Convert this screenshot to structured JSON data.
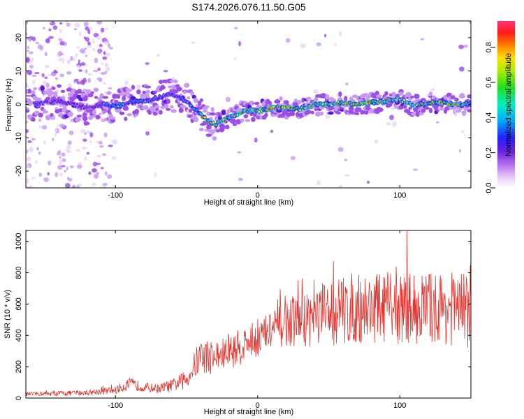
{
  "figure": {
    "title": "S174.2026.076.11.50.G05"
  },
  "chart_data": [
    {
      "type": "heatmap",
      "xlabel": "Height of straight line (km)",
      "ylabel": "Frequency (Hz)",
      "xlim": [
        -163,
        150
      ],
      "ylim": [
        -25,
        25
      ],
      "xticks": [
        -100,
        0,
        100
      ],
      "yticks": [
        -20,
        -10,
        0,
        10,
        20
      ],
      "colorbar": {
        "label": "Normalized spectral amplitude",
        "range": [
          0,
          0.95
        ],
        "ticks": [
          "0.0",
          "0.2",
          "0.4",
          "0.6",
          "0.8"
        ],
        "colors": [
          "#ffffff",
          "#e6c8f5",
          "#8a2be2",
          "#3333ff",
          "#00bfff",
          "#00ff99",
          "#33dd00",
          "#ccff00",
          "#ffcc00",
          "#ff6600",
          "#ff0000",
          "#ff3399"
        ]
      },
      "ridge": {
        "x": [
          -160,
          -150,
          -140,
          -130,
          -120,
          -110,
          -100,
          -90,
          -80,
          -70,
          -60,
          -50,
          -45,
          -40,
          -35,
          -30,
          -20,
          -10,
          0,
          10,
          20,
          30,
          40,
          50,
          60,
          70,
          80,
          90,
          100,
          110,
          120,
          130,
          140,
          150
        ],
        "y": [
          0,
          0.5,
          1,
          0,
          -1,
          0,
          -0.5,
          0.5,
          1,
          2,
          3,
          1,
          -1,
          -3,
          -5,
          -6,
          -4,
          -2,
          -2,
          -1,
          -1,
          -1.5,
          0,
          0,
          0.5,
          0,
          0.5,
          1,
          1.5,
          -0.5,
          0.5,
          0.5,
          0,
          0
        ]
      }
    },
    {
      "type": "line",
      "xlabel": "Height of straight line (km)",
      "ylabel": "SNR (10 * v/v)",
      "xlim": [
        -163,
        150
      ],
      "ylim": [
        0,
        1070
      ],
      "xticks": [
        -100,
        0,
        100
      ],
      "yticks": [
        0,
        200,
        400,
        600,
        800,
        1000
      ],
      "color": "#e8302a",
      "envelope": {
        "x": [
          -163,
          -140,
          -120,
          -100,
          -90,
          -80,
          -70,
          -60,
          -50,
          -45,
          -40,
          -30,
          -20,
          -10,
          0,
          10,
          20,
          30,
          40,
          50,
          60,
          80,
          100,
          120,
          140,
          150
        ],
        "mean": [
          25,
          30,
          35,
          50,
          90,
          70,
          60,
          80,
          120,
          200,
          270,
          260,
          290,
          340,
          380,
          430,
          480,
          500,
          520,
          540,
          560,
          580,
          570,
          580,
          570,
          560
        ],
        "amp": [
          12,
          15,
          18,
          25,
          40,
          30,
          30,
          40,
          60,
          90,
          120,
          110,
          110,
          120,
          120,
          130,
          150,
          180,
          200,
          220,
          230,
          230,
          230,
          230,
          240,
          240
        ]
      },
      "peak": {
        "x": 105,
        "y": 1065
      }
    }
  ]
}
